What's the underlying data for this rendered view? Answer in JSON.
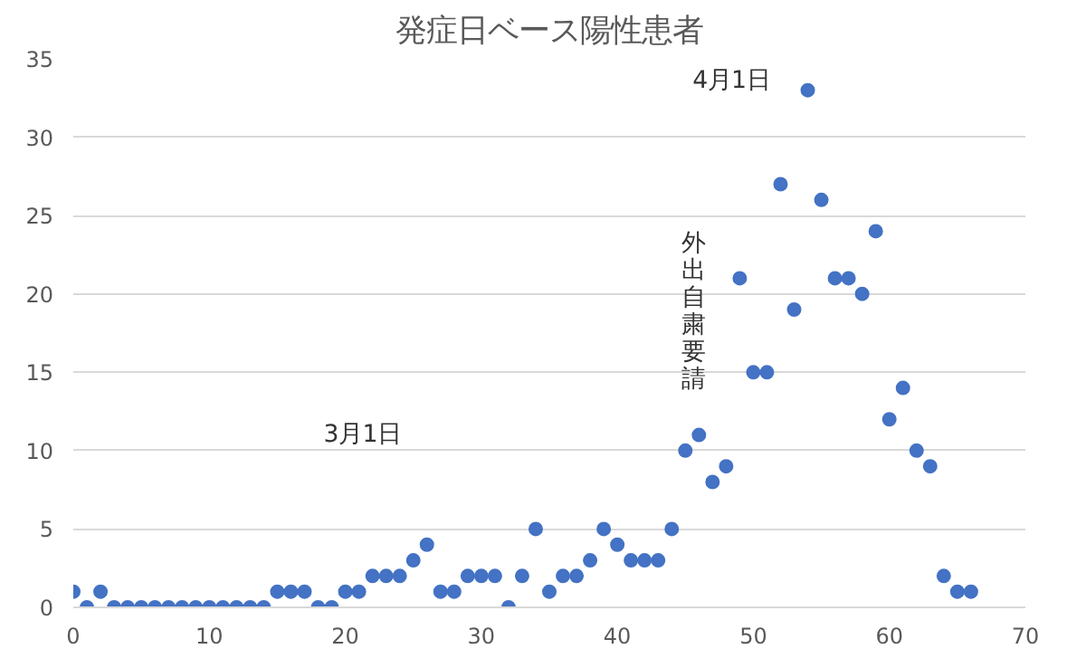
{
  "chart_data": {
    "type": "scatter",
    "title": "発症日ベース陽性患者",
    "x": [
      0,
      1,
      2,
      3,
      4,
      5,
      6,
      7,
      8,
      9,
      10,
      11,
      12,
      13,
      14,
      15,
      16,
      17,
      18,
      19,
      20,
      21,
      22,
      23,
      24,
      25,
      26,
      27,
      28,
      29,
      30,
      31,
      32,
      33,
      34,
      35,
      36,
      37,
      38,
      39,
      40,
      41,
      42,
      43,
      44,
      45,
      46,
      47,
      48,
      49,
      50,
      51,
      52,
      53,
      54,
      55,
      56,
      57,
      58,
      59,
      60,
      61,
      62,
      63,
      64,
      65,
      66
    ],
    "series": [
      {
        "color": "#4472c4",
        "values": [
          1,
          0,
          1,
          0,
          0,
          0,
          0,
          0,
          0,
          0,
          0,
          0,
          0,
          0,
          0,
          1,
          1,
          1,
          0,
          0,
          1,
          1,
          2,
          2,
          2,
          3,
          4,
          1,
          1,
          2,
          2,
          2,
          0,
          2,
          5,
          1,
          2,
          2,
          3,
          5,
          4,
          3,
          3,
          3,
          5,
          10,
          11,
          8,
          9,
          21,
          15,
          15,
          27,
          19,
          33,
          26,
          21,
          21,
          20,
          24,
          12,
          14,
          10,
          9,
          2,
          1,
          1
        ]
      }
    ],
    "xlim": [
      0,
      70
    ],
    "ylim": [
      0,
      35
    ],
    "xticks": [
      0,
      10,
      20,
      30,
      40,
      50,
      60,
      70
    ],
    "yticks": [
      0,
      5,
      10,
      15,
      20,
      25,
      30,
      35
    ],
    "grid": "y",
    "marker": "circle",
    "annotations": [
      "3月1日",
      "4月1日",
      "外出自粛要請"
    ]
  }
}
